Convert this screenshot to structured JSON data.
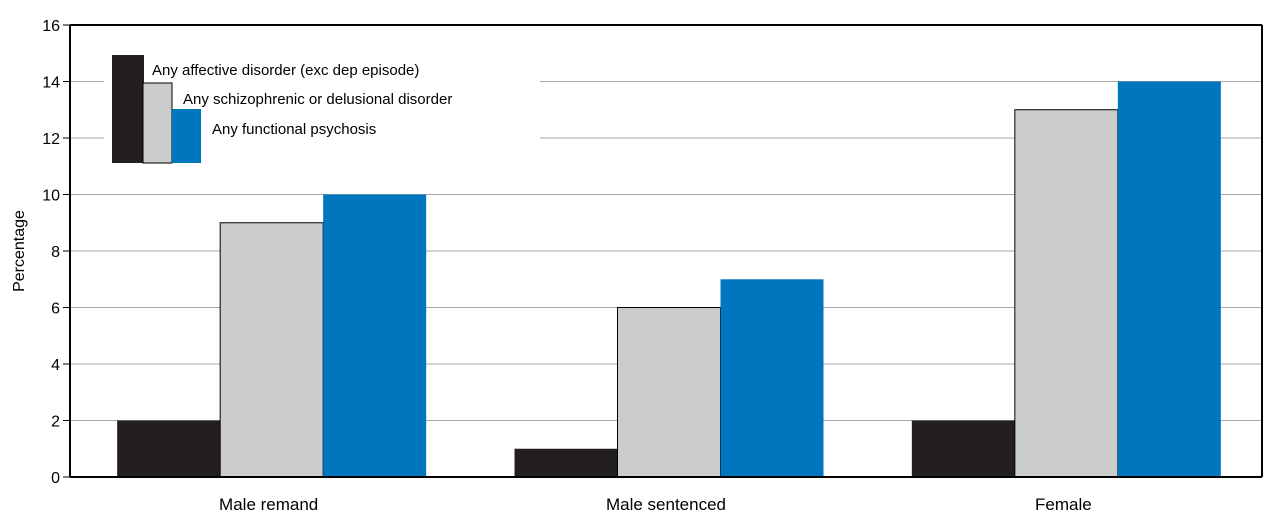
{
  "chart_data": {
    "type": "bar",
    "ylabel": "Percentage",
    "ylim": [
      0,
      16
    ],
    "yticks": [
      0,
      2,
      4,
      6,
      8,
      10,
      12,
      14,
      16
    ],
    "grid": true,
    "legend_position": "top-left",
    "categories": [
      "Male remand",
      "Male sentenced",
      "Female"
    ],
    "series": [
      {
        "name": "Any affective disorder (exc dep episode)",
        "color": "#231f20",
        "values": [
          2,
          1,
          2
        ]
      },
      {
        "name": "Any schizophrenic or delusional disorder",
        "color": "#cbcccd",
        "values": [
          9,
          6,
          13
        ]
      },
      {
        "name": "Any functional psychosis",
        "color": "#0076bf",
        "values": [
          10,
          7,
          14
        ]
      }
    ]
  }
}
